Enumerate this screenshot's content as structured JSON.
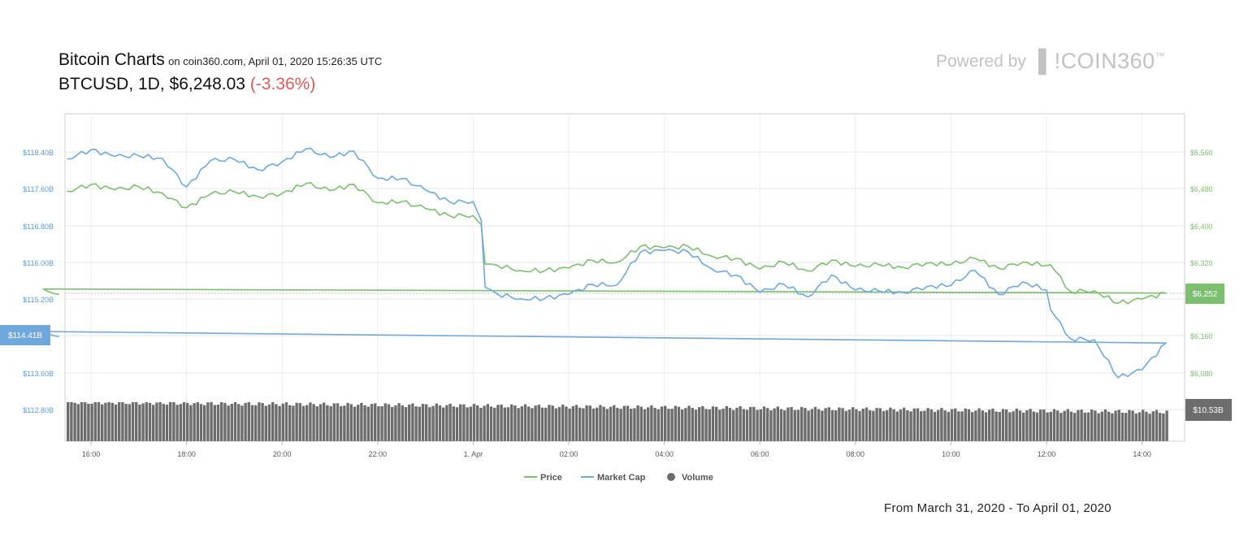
{
  "header": {
    "title": "Bitcoin Charts",
    "source": "on coin360.com, April 01, 2020 15:26:35 UTC",
    "symbol_line": "BTCUSD, 1D, $6,248.03",
    "change": "(-3.36%)"
  },
  "branding": {
    "powered_by": "Powered by",
    "brand": "COIN360",
    "trademark": "™"
  },
  "date_range": "From March 31, 2020 - To April 01, 2020",
  "colors": {
    "price": "#7cbf6e",
    "market_cap": "#6fa8dc",
    "volume": "#6d6d6d",
    "change_negative": "#e05a5a",
    "left_axis_text": "#5b9bd5",
    "right_axis_text": "#7cbf6e"
  },
  "chart_data": {
    "type": "line",
    "title": "",
    "x_ticks": [
      "16:00",
      "18:00",
      "20:00",
      "22:00",
      "1. Apr",
      "02:00",
      "04:00",
      "06:00",
      "08:00",
      "10:00",
      "12:00",
      "14:00"
    ],
    "left_axis": {
      "ticks": [
        "$118.40B",
        "$117.60B",
        "$116.80B",
        "$116.00B",
        "$115.20B",
        "$113.60B",
        "$112.80B"
      ],
      "range_b": [
        112.8,
        118.4
      ]
    },
    "right_axis": {
      "ticks": [
        "$6,560",
        "$6,480",
        "$6,400",
        "$6,320",
        "$6,080"
      ],
      "range": [
        6080,
        6560
      ]
    },
    "current_price_label": "$6,252",
    "current_marketcap_label": "$114.41B",
    "current_volume_label": "$10.53B",
    "legend": [
      "Price",
      "Market Cap",
      "Volume"
    ],
    "series": [
      {
        "name": "Price",
        "axis": "right",
        "x": [
          "15:30",
          "16:00",
          "16:30",
          "17:00",
          "17:30",
          "18:00",
          "18:30",
          "19:00",
          "19:30",
          "20:00",
          "20:30",
          "21:00",
          "21:30",
          "22:00",
          "22:30",
          "23:00",
          "23:30",
          "00:00",
          "00:10",
          "00:15",
          "00:30",
          "01:00",
          "01:30",
          "02:00",
          "02:30",
          "03:00",
          "03:30",
          "04:00",
          "04:30",
          "05:00",
          "05:30",
          "06:00",
          "06:30",
          "07:00",
          "07:30",
          "08:00",
          "08:30",
          "09:00",
          "09:30",
          "10:00",
          "10:30",
          "11:00",
          "11:30",
          "12:00",
          "12:05",
          "12:30",
          "13:00",
          "13:30",
          "14:00",
          "14:30",
          "15:00",
          "15:20"
        ],
        "values": [
          6475,
          6490,
          6478,
          6485,
          6470,
          6440,
          6468,
          6475,
          6462,
          6472,
          6490,
          6478,
          6488,
          6452,
          6450,
          6440,
          6420,
          6425,
          6400,
          6320,
          6312,
          6306,
          6300,
          6312,
          6322,
          6324,
          6352,
          6356,
          6352,
          6338,
          6326,
          6310,
          6318,
          6306,
          6322,
          6316,
          6312,
          6314,
          6316,
          6320,
          6326,
          6312,
          6318,
          6318,
          6312,
          6262,
          6256,
          6236,
          6238,
          6258,
          6260,
          6252
        ]
      },
      {
        "name": "Market Cap",
        "axis": "left",
        "unit": "B USD",
        "x": [
          "15:30",
          "16:00",
          "16:30",
          "17:00",
          "17:30",
          "18:00",
          "18:30",
          "19:00",
          "19:30",
          "20:00",
          "20:30",
          "21:00",
          "21:30",
          "22:00",
          "22:30",
          "23:00",
          "23:30",
          "00:00",
          "00:10",
          "00:15",
          "00:30",
          "01:00",
          "01:30",
          "02:00",
          "02:30",
          "03:00",
          "03:30",
          "04:00",
          "04:30",
          "05:00",
          "05:30",
          "06:00",
          "06:30",
          "07:00",
          "07:30",
          "08:00",
          "08:30",
          "09:00",
          "09:30",
          "10:00",
          "10:30",
          "11:00",
          "11:30",
          "12:00",
          "12:05",
          "12:30",
          "13:00",
          "13:30",
          "14:00",
          "14:30",
          "15:00",
          "15:20"
        ],
        "values": [
          118.25,
          118.45,
          118.3,
          118.32,
          118.25,
          117.65,
          118.2,
          118.25,
          118.0,
          118.2,
          118.45,
          118.3,
          118.4,
          117.85,
          117.8,
          117.6,
          117.3,
          117.35,
          116.9,
          115.5,
          115.3,
          115.25,
          115.2,
          115.35,
          115.5,
          115.55,
          116.2,
          116.3,
          116.2,
          115.9,
          115.7,
          115.4,
          115.5,
          115.3,
          115.7,
          115.45,
          115.35,
          115.4,
          115.45,
          115.55,
          115.8,
          115.35,
          115.55,
          115.45,
          114.95,
          114.4,
          114.3,
          113.55,
          113.65,
          114.3,
          114.48,
          114.41
        ]
      }
    ],
    "volume": {
      "axis": "volume",
      "value_label": "$10.53B",
      "relative_level": 0.92
    }
  }
}
